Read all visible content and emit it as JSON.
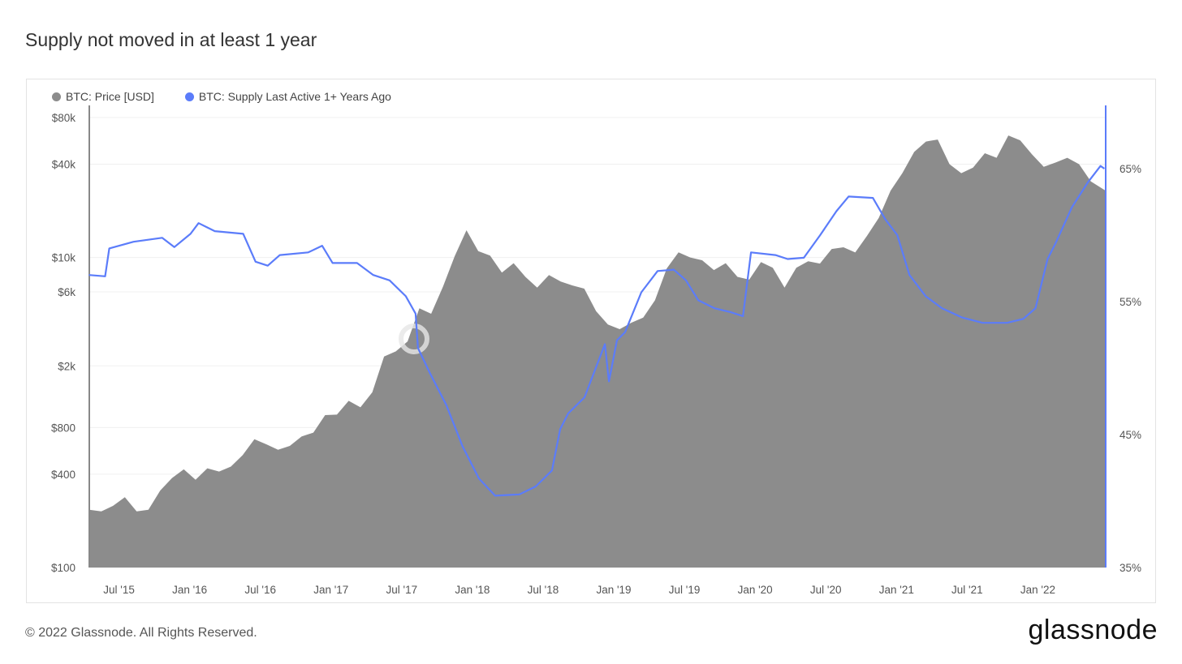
{
  "title": "Supply not moved in at least 1 year",
  "footer": "© 2022 Glassnode. All Rights Reserved.",
  "logo_text": "glassnode",
  "colors": {
    "price": "#8c8c8c",
    "supply": "#5b7cfa"
  },
  "chart_data": {
    "type": "area+line",
    "title": "Supply not moved in at least 1 year",
    "legend": [
      "BTC: Price [USD]",
      "BTC: Supply Last Active 1+ Years Ago"
    ],
    "legend_position": "top-left",
    "xlim": [
      2015.29,
      2022.48
    ],
    "x_ticks": [
      {
        "label": "Jul '15",
        "x": 2015.5
      },
      {
        "label": "Jan '16",
        "x": 2016.0
      },
      {
        "label": "Jul '16",
        "x": 2016.5
      },
      {
        "label": "Jan '17",
        "x": 2017.0
      },
      {
        "label": "Jul '17",
        "x": 2017.5
      },
      {
        "label": "Jan '18",
        "x": 2018.0
      },
      {
        "label": "Jul '18",
        "x": 2018.5
      },
      {
        "label": "Jan '19",
        "x": 2019.0
      },
      {
        "label": "Jul '19",
        "x": 2019.5
      },
      {
        "label": "Jan '20",
        "x": 2020.0
      },
      {
        "label": "Jul '20",
        "x": 2020.5
      },
      {
        "label": "Jan '21",
        "x": 2021.0
      },
      {
        "label": "Jul '21",
        "x": 2021.5
      },
      {
        "label": "Jan '22",
        "x": 2022.0
      }
    ],
    "y_left": {
      "scale": "log",
      "ylim": [
        100,
        80000
      ],
      "ticks": [
        {
          "label": "$80k",
          "v": 80000
        },
        {
          "label": "$40k",
          "v": 40000
        },
        {
          "label": "$10k",
          "v": 10000
        },
        {
          "label": "$6k",
          "v": 6000
        },
        {
          "label": "$2k",
          "v": 2000
        },
        {
          "label": "$800",
          "v": 800
        },
        {
          "label": "$400",
          "v": 400
        },
        {
          "label": "$100",
          "v": 100
        }
      ]
    },
    "y_right": {
      "scale": "linear",
      "ylim": [
        35,
        65
      ],
      "ticks": [
        {
          "label": "65%",
          "v": 65
        },
        {
          "label": "55%",
          "v": 55
        },
        {
          "label": "45%",
          "v": 45
        },
        {
          "label": "35%",
          "v": 35
        }
      ]
    },
    "series": [
      {
        "name": "BTC: Price [USD]",
        "type": "area",
        "axis": "left",
        "start_month": "2015-04",
        "monthly_values": [
          236,
          230,
          250,
          284,
          230,
          236,
          314,
          378,
          430,
          368,
          437,
          416,
          448,
          531,
          673,
          624,
          575,
          609,
          700,
          742,
          963,
          970,
          1190,
          1080,
          1350,
          2300,
          2480,
          2875,
          4700,
          4340,
          6470,
          10200,
          15000,
          11000,
          10300,
          8000,
          9200,
          7500,
          6400,
          7700,
          7000,
          6600,
          6300,
          4500,
          3700,
          3450,
          3800,
          4100,
          5300,
          8500,
          10800,
          10000,
          9600,
          8300,
          9200,
          7500,
          7200,
          9350,
          8600,
          6400,
          8600,
          9450,
          9140,
          11350,
          11650,
          10780,
          13800,
          18000,
          27000,
          35000,
          48000,
          56000,
          57700,
          40000,
          35000,
          38000,
          47100,
          44000,
          61300,
          57000,
          46300,
          38500,
          41000,
          44000,
          40000,
          31000,
          27000
        ]
      },
      {
        "name": "BTC: Supply Last Active 1+ Years Ago",
        "type": "line",
        "axis": "right",
        "unit": "%",
        "points": [
          [
            2015.287,
            57.0
          ],
          [
            2015.402,
            56.9
          ],
          [
            2015.431,
            59.0
          ],
          [
            2015.603,
            59.5
          ],
          [
            2015.805,
            59.8
          ],
          [
            2015.891,
            59.1
          ],
          [
            2016.006,
            60.1
          ],
          [
            2016.063,
            60.9
          ],
          [
            2016.178,
            60.3
          ],
          [
            2016.379,
            60.1
          ],
          [
            2016.466,
            58.0
          ],
          [
            2016.552,
            57.7
          ],
          [
            2016.638,
            58.5
          ],
          [
            2016.839,
            58.7
          ],
          [
            2016.937,
            59.2
          ],
          [
            2017.011,
            57.9
          ],
          [
            2017.184,
            57.9
          ],
          [
            2017.299,
            57.0
          ],
          [
            2017.414,
            56.6
          ],
          [
            2017.529,
            55.4
          ],
          [
            2017.598,
            54.1
          ],
          [
            2017.615,
            51.5
          ],
          [
            2017.701,
            49.6
          ],
          [
            2017.816,
            47.2
          ],
          [
            2017.931,
            44.1
          ],
          [
            2018.046,
            41.7
          ],
          [
            2018.161,
            40.4
          ],
          [
            2018.333,
            40.5
          ],
          [
            2018.448,
            41.1
          ],
          [
            2018.563,
            42.3
          ],
          [
            2018.621,
            45.4
          ],
          [
            2018.678,
            46.6
          ],
          [
            2018.793,
            47.8
          ],
          [
            2018.937,
            51.8
          ],
          [
            2018.966,
            49.0
          ],
          [
            2019.023,
            52.1
          ],
          [
            2019.08,
            52.7
          ],
          [
            2019.195,
            55.7
          ],
          [
            2019.31,
            57.3
          ],
          [
            2019.425,
            57.4
          ],
          [
            2019.511,
            56.6
          ],
          [
            2019.598,
            55.1
          ],
          [
            2019.713,
            54.5
          ],
          [
            2019.828,
            54.2
          ],
          [
            2019.914,
            53.9
          ],
          [
            2019.971,
            58.7
          ],
          [
            2020.144,
            58.5
          ],
          [
            2020.23,
            58.2
          ],
          [
            2020.345,
            58.3
          ],
          [
            2020.46,
            60.0
          ],
          [
            2020.575,
            61.8
          ],
          [
            2020.661,
            62.9
          ],
          [
            2020.833,
            62.8
          ],
          [
            2020.92,
            61.2
          ],
          [
            2021.006,
            60.0
          ],
          [
            2021.092,
            57.0
          ],
          [
            2021.207,
            55.4
          ],
          [
            2021.322,
            54.5
          ],
          [
            2021.466,
            53.8
          ],
          [
            2021.609,
            53.4
          ],
          [
            2021.782,
            53.4
          ],
          [
            2021.897,
            53.7
          ],
          [
            2021.983,
            54.5
          ],
          [
            2022.069,
            58.2
          ],
          [
            2022.126,
            59.4
          ],
          [
            2022.241,
            62.1
          ],
          [
            2022.356,
            64.0
          ],
          [
            2022.443,
            65.2
          ],
          [
            2022.471,
            65.0
          ]
        ]
      }
    ]
  }
}
